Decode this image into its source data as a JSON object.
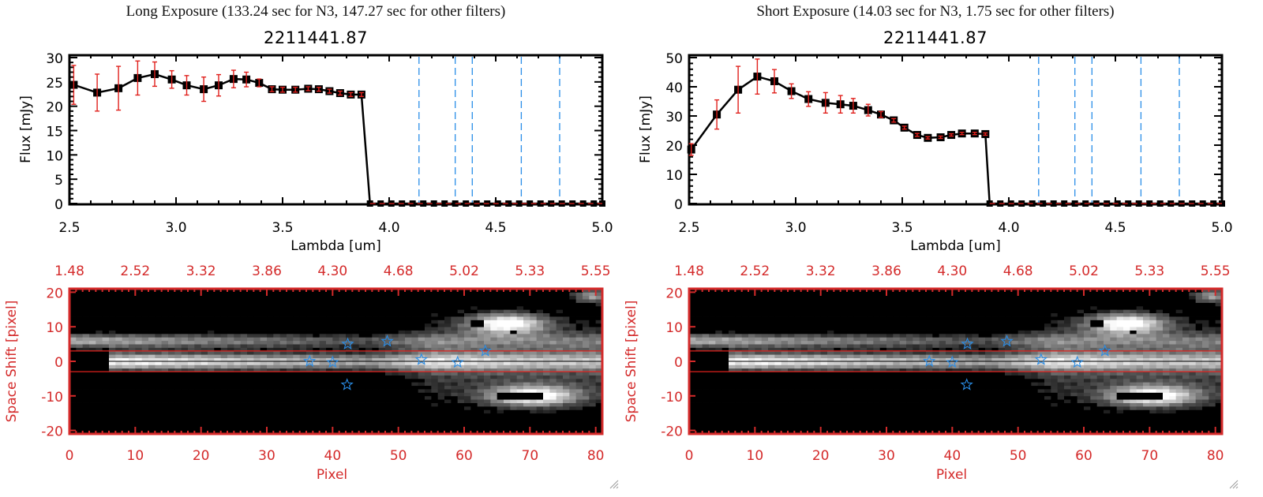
{
  "panels": [
    {
      "id": "long",
      "title": "Long Exposure (133.24 sec for N3, 147.27 sec for other filters)",
      "object_id": "2211441.87"
    },
    {
      "id": "short",
      "title": "Short Exposure (14.03 sec for N3, 1.75 sec for other filters)",
      "object_id": "2211441.87"
    }
  ],
  "colors": {
    "line": "#000000",
    "errorbar": "#e0201c",
    "filter_lines": "#2a8ee8",
    "zero_line": "#e0201c",
    "image_axes": "#d42a2a",
    "stars": "#2a8ee8",
    "aperture_lines": "#e0201c"
  },
  "chart_data": [
    {
      "type": "line",
      "title": "2211441.87",
      "xlabel": "Lambda [um]",
      "ylabel": "Flux [mJy]",
      "xlim": [
        2.5,
        5.0
      ],
      "ylim": [
        0,
        30
      ],
      "xticks": [
        "2.5",
        "3.0",
        "3.5",
        "4.0",
        "4.5",
        "5.0"
      ],
      "yticks": [
        "0",
        "5",
        "10",
        "15",
        "20",
        "25",
        "30"
      ],
      "filter_lines": [
        4.14,
        4.31,
        4.39,
        4.62,
        4.8
      ],
      "series": [
        {
          "name": "flux",
          "x": [
            2.52,
            2.63,
            2.73,
            2.82,
            2.9,
            2.98,
            3.05,
            3.13,
            3.2,
            3.27,
            3.33,
            3.39,
            3.45,
            3.5,
            3.56,
            3.62,
            3.67,
            3.72,
            3.77,
            3.82,
            3.87,
            3.91
          ],
          "y": [
            24.4,
            22.8,
            23.7,
            25.8,
            26.6,
            25.5,
            24.3,
            23.5,
            24.3,
            25.6,
            25.5,
            24.8,
            23.5,
            23.4,
            23.4,
            23.6,
            23.5,
            23.1,
            22.7,
            22.4,
            22.4,
            0.0
          ],
          "err": [
            4.0,
            3.8,
            4.5,
            3.5,
            2.5,
            1.8,
            2.0,
            2.5,
            2.2,
            1.8,
            1.5,
            0.8,
            0.5,
            0.5,
            0.5,
            0.4,
            0.4,
            0.4,
            0.4,
            0.4,
            0.4,
            0.0
          ]
        }
      ],
      "zero_points_x": [
        3.91,
        3.96,
        4.01,
        4.06,
        4.11,
        4.16,
        4.21,
        4.26,
        4.31,
        4.36,
        4.41,
        4.46,
        4.51,
        4.56,
        4.61,
        4.66,
        4.71,
        4.76,
        4.81,
        4.86,
        4.91,
        4.96,
        5.0
      ]
    },
    {
      "type": "line",
      "title": "2211441.87",
      "xlabel": "Lambda [um]",
      "ylabel": "Flux [mJy]",
      "xlim": [
        2.5,
        5.0
      ],
      "ylim": [
        0,
        50
      ],
      "xticks": [
        "2.5",
        "3.0",
        "3.5",
        "4.0",
        "4.5",
        "5.0"
      ],
      "yticks": [
        "0",
        "10",
        "20",
        "30",
        "40",
        "50"
      ],
      "filter_lines": [
        4.14,
        4.31,
        4.39,
        4.62,
        4.8
      ],
      "series": [
        {
          "name": "flux",
          "x": [
            2.51,
            2.63,
            2.73,
            2.82,
            2.9,
            2.98,
            3.06,
            3.14,
            3.21,
            3.27,
            3.34,
            3.4,
            3.46,
            3.51,
            3.57,
            3.62,
            3.68,
            3.73,
            3.78,
            3.84,
            3.89,
            3.91
          ],
          "y": [
            18.5,
            30.5,
            39.0,
            43.5,
            41.9,
            38.5,
            35.8,
            34.5,
            34.0,
            33.5,
            32.0,
            30.5,
            28.5,
            26.0,
            23.5,
            22.5,
            22.7,
            23.5,
            24.0,
            24.0,
            23.8,
            0.0
          ],
          "err": [
            2.0,
            5.0,
            8.0,
            6.0,
            4.0,
            2.5,
            2.5,
            3.5,
            3.0,
            2.5,
            2.0,
            1.0,
            0.6,
            0.5,
            0.5,
            0.4,
            0.4,
            0.4,
            0.4,
            0.4,
            0.4,
            0.0
          ]
        }
      ],
      "zero_points_x": [
        3.91,
        3.96,
        4.01,
        4.06,
        4.11,
        4.16,
        4.21,
        4.26,
        4.31,
        4.36,
        4.41,
        4.46,
        4.51,
        4.56,
        4.61,
        4.66,
        4.71,
        4.76,
        4.81,
        4.86,
        4.91,
        4.96,
        5.0
      ]
    },
    {
      "type": "heatmap",
      "xlabel": "Pixel",
      "ylabel": "Space Shift [pixel]",
      "xlim": [
        0,
        81
      ],
      "ylim": [
        -21,
        21
      ],
      "xticks": [
        "0",
        "10",
        "20",
        "30",
        "40",
        "50",
        "60",
        "70",
        "80"
      ],
      "yticks": [
        "-20",
        "-10",
        "0",
        "10",
        "20"
      ],
      "top_ticks": [
        "1.48",
        "2.52",
        "3.32",
        "3.86",
        "4.30",
        "4.68",
        "5.02",
        "5.33",
        "5.55"
      ],
      "aperture": [
        -3,
        3
      ],
      "stars": [
        [
          36.5,
          0
        ],
        [
          40,
          -0.3
        ],
        [
          42.3,
          5
        ],
        [
          48.3,
          5.8
        ],
        [
          53.5,
          0.5
        ],
        [
          59,
          -0.3
        ],
        [
          63.2,
          3
        ],
        [
          42.2,
          -6.8
        ]
      ]
    }
  ]
}
